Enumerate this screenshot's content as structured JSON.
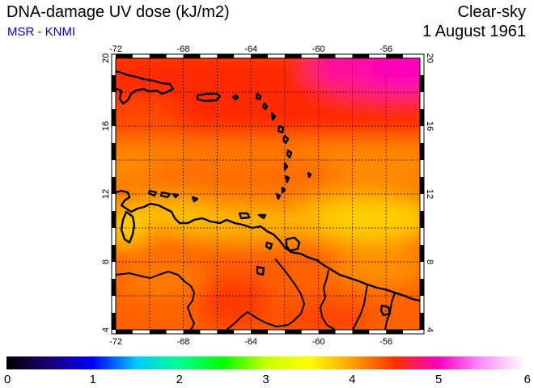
{
  "header": {
    "title": "DNA-damage UV dose (kJ/m2)",
    "source": "MSR - KNMI",
    "sky_condition": "Clear-sky",
    "date": "1 August 1961"
  },
  "map": {
    "lon_range": [
      -72,
      -54
    ],
    "lat_range": [
      4,
      20
    ],
    "lon_ticks": [
      "-72",
      "-68",
      "-64",
      "-60",
      "-56"
    ],
    "lat_ticks": [
      "4",
      "8",
      "12",
      "16",
      "20"
    ],
    "grid": true
  },
  "colorbar": {
    "min": 0,
    "max": 6,
    "ticks": [
      "0",
      "1",
      "2",
      "3",
      "4",
      "5",
      "6"
    ],
    "colors": [
      "#000000",
      "#1a0077",
      "#0000ff",
      "#00c8ff",
      "#00ff90",
      "#00ff00",
      "#c8ff00",
      "#ffff00",
      "#ffa000",
      "#ff3000",
      "#ff00c0",
      "#ff90ff",
      "#ffffff"
    ]
  }
}
